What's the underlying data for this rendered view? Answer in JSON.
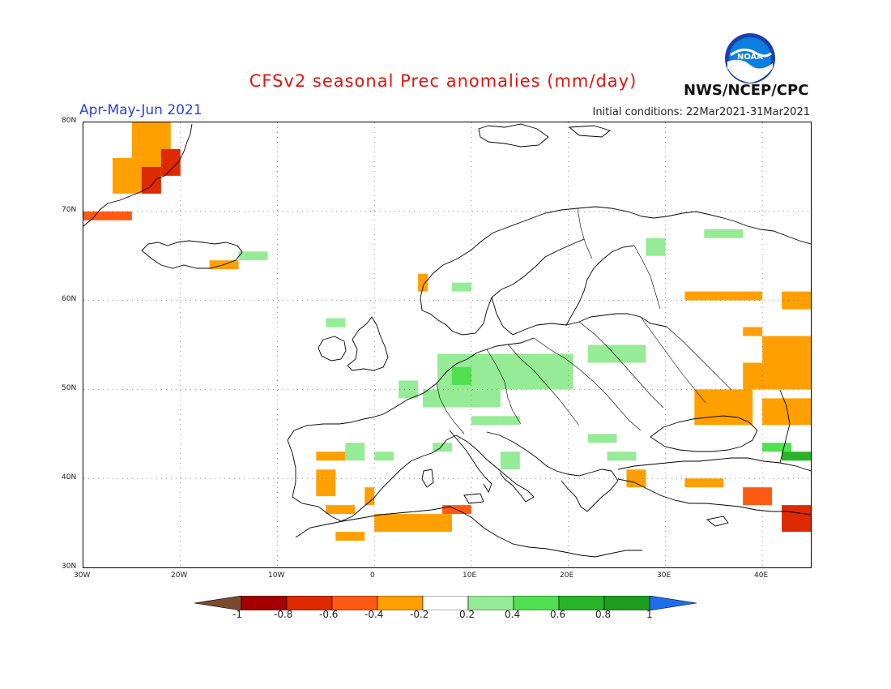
{
  "header": {
    "title": "CFSv2 seasonal Prec anomalies (mm/day)",
    "period": "Apr-May-Jun 2021",
    "initial_conditions": "Initial conditions: 22Mar2021-31Mar2021",
    "organization": "NWS/NCEP/CPC",
    "logo_text": "NOAA"
  },
  "map": {
    "region": "Europe",
    "lon_range": [
      -30,
      45
    ],
    "lat_range": [
      30,
      80
    ],
    "lat_labels": [
      "80N",
      "70N",
      "60N",
      "50N",
      "40N",
      "30N"
    ],
    "lon_labels": [
      "30W",
      "20W",
      "10W",
      "0",
      "10E",
      "20E",
      "30E",
      "40E"
    ],
    "grid": true
  },
  "colorbar": {
    "labels": [
      "-1",
      "-0.8",
      "-0.6",
      "-0.4",
      "-0.2",
      "0.2",
      "0.4",
      "0.6",
      "0.8",
      "1"
    ],
    "colors": {
      "below_min": "#7a4a30",
      "lt_-0.8": "#a50000",
      "-0.8_-0.6": "#dd2a00",
      "-0.6_-0.4": "#ff5a14",
      "-0.4_-0.2": "#ffa000",
      "neutral": "#ffffff",
      "0.2_0.4": "#96eb96",
      "0.4_0.6": "#50e050",
      "0.6_0.8": "#28b428",
      "0.8_1": "#1e9e1e",
      "above_max": "#1e6eeb"
    }
  }
}
